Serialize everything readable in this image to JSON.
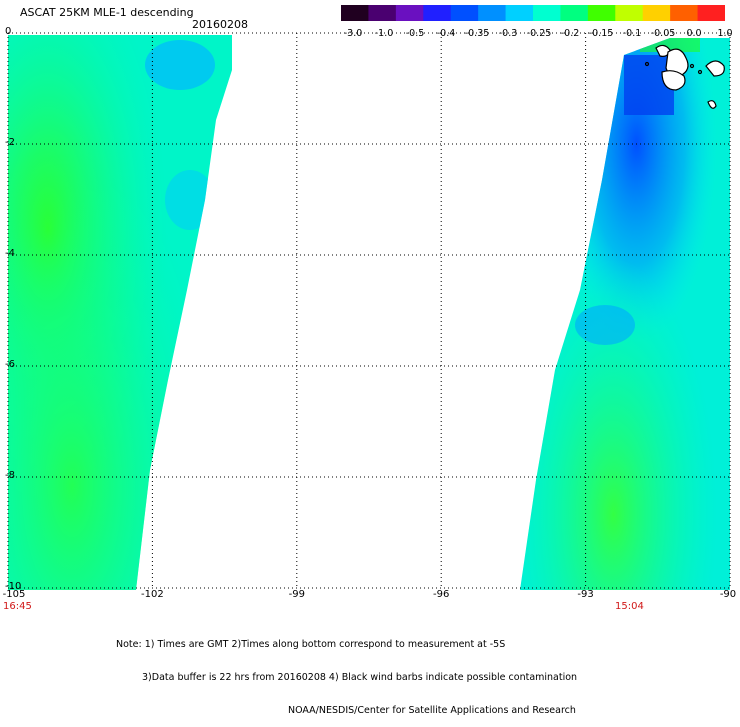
{
  "title": "ASCAT 25KM MLE-1 descending",
  "date": "20160208",
  "colorbar": {
    "labels": [
      "-3.0",
      "-1.0",
      "-0.5",
      "-0.4",
      "-0.35",
      "-0.3",
      "-0.25",
      "-0.2",
      "-0.15",
      "-0.1",
      "-0.05",
      "0.0",
      "1.0"
    ],
    "colors": [
      "#200020",
      "#4a0070",
      "#6a10c0",
      "#2020ff",
      "#0050ff",
      "#0090ff",
      "#00d0ff",
      "#00ffd0",
      "#00ff80",
      "#40ff00",
      "#c0ff00",
      "#ffd000",
      "#ff6000",
      "#ff2020"
    ]
  },
  "axes": {
    "lat_labels": [
      "0",
      "-2",
      "-4",
      "-6",
      "-8",
      "-10"
    ],
    "lon_labels": [
      "-105",
      "-102",
      "-99",
      "-96",
      "-93",
      "-90"
    ]
  },
  "times": {
    "left": "16:45",
    "right": "15:04"
  },
  "notes": [
    "Note: 1) Times are GMT 2)Times along bottom correspond to measurement at -5S",
    "3)Data buffer is 22 hrs from 20160208 4) Black wind barbs indicate possible contamination",
    "NOAA/NESDIS/Center for Satellite Applications and Research"
  ],
  "colors": {
    "time_text": "#d01818",
    "land_outline": "#000000",
    "grid": "#000000"
  }
}
